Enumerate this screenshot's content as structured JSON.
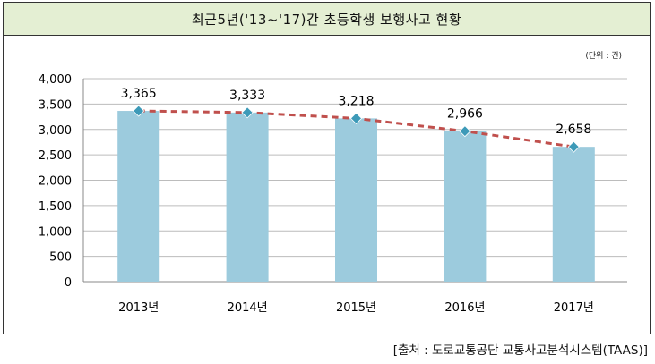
{
  "title": "최근5년('13~'17)간 초등학생 보행사고 현황",
  "unit_note": "(단위 : 건)",
  "source": "[출처 : 도로교통공단 교통사고분석시스템(TAAS)]",
  "colors": {
    "bar": "#9ccbdd",
    "trend": "#c0504d",
    "marker": "#3d9ab8",
    "title_bg": "#e4efd3"
  },
  "chart_data": {
    "type": "bar",
    "title": "최근5년('13~'17)간 초등학생 보행사고 현황",
    "categories": [
      "2013년",
      "2014년",
      "2015년",
      "2016년",
      "2017년"
    ],
    "series": [
      {
        "type": "bar",
        "values": [
          3365,
          3333,
          3218,
          2966,
          2658
        ]
      },
      {
        "type": "line",
        "style": "dashed",
        "values": [
          3365,
          3333,
          3218,
          2966,
          2658
        ]
      }
    ],
    "data_labels": [
      "3,365",
      "3,333",
      "3,218",
      "2,966",
      "2,658"
    ],
    "y_ticks": [
      "0",
      "500",
      "1,000",
      "1,500",
      "2,000",
      "2,500",
      "3,000",
      "3,500",
      "4,000"
    ],
    "ylim": [
      0,
      4000
    ],
    "xlabel": "",
    "ylabel": "",
    "grid": true,
    "legend": "none"
  }
}
